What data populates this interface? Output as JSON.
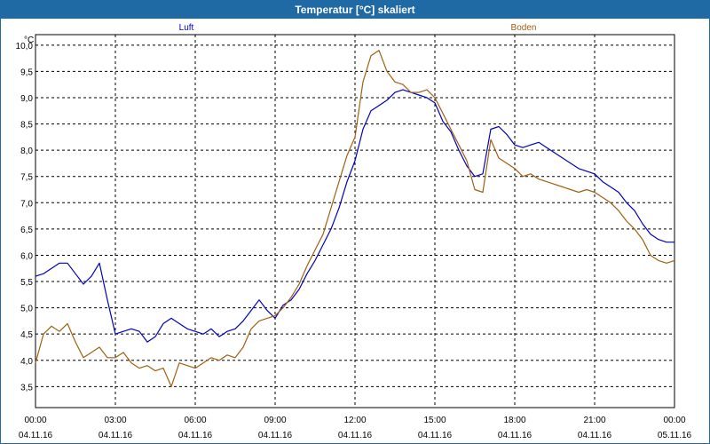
{
  "window": {
    "title": "Temperatur [°C] skaliert"
  },
  "chart_data": {
    "type": "line",
    "title": "Temperatur [°C] skaliert",
    "ylabel": "°C",
    "ylim": [
      3.1,
      10.2
    ],
    "yticks": [
      "10,0",
      "9,5",
      "9,0",
      "8,5",
      "8,0",
      "7,5",
      "7,0",
      "6,5",
      "6,0",
      "5,5",
      "5,0",
      "4,5",
      "4,0",
      "3,5"
    ],
    "xlim": [
      0,
      24
    ],
    "xticks": [
      {
        "time": "00:00",
        "date": "04.11.16"
      },
      {
        "time": "03:00",
        "date": "04.11.16"
      },
      {
        "time": "06:00",
        "date": "04.11.16"
      },
      {
        "time": "09:00",
        "date": "04.11.16"
      },
      {
        "time": "12:00",
        "date": "04.11.16"
      },
      {
        "time": "15:00",
        "date": "04.11.16"
      },
      {
        "time": "18:00",
        "date": "04.11.16"
      },
      {
        "time": "21:00",
        "date": "04.11.16"
      },
      {
        "time": "00:00",
        "date": "05.11.16"
      }
    ],
    "grid": true,
    "series": [
      {
        "name": "Luft",
        "color": "#0000c0",
        "x": [
          0,
          0.3,
          0.6,
          0.9,
          1.2,
          1.5,
          1.8,
          2.1,
          2.4,
          2.7,
          3.0,
          3.3,
          3.6,
          3.9,
          4.2,
          4.5,
          4.8,
          5.1,
          5.4,
          5.7,
          6.0,
          6.3,
          6.6,
          6.9,
          7.2,
          7.5,
          7.8,
          8.1,
          8.4,
          8.7,
          9.0,
          9.3,
          9.6,
          9.9,
          10.2,
          10.5,
          10.8,
          11.1,
          11.4,
          11.7,
          12.0,
          12.3,
          12.6,
          12.9,
          13.2,
          13.5,
          13.8,
          14.1,
          14.4,
          14.7,
          15.0,
          15.3,
          15.6,
          15.9,
          16.2,
          16.5,
          16.8,
          17.1,
          17.4,
          17.7,
          18.0,
          18.3,
          18.6,
          18.9,
          19.2,
          19.5,
          19.8,
          20.1,
          20.4,
          20.7,
          21.0,
          21.3,
          21.6,
          21.9,
          22.2,
          22.5,
          22.8,
          23.1,
          23.4,
          23.7,
          24.0
        ],
        "values": [
          5.6,
          5.65,
          5.75,
          5.85,
          5.85,
          5.65,
          5.45,
          5.6,
          5.85,
          5.15,
          4.5,
          4.55,
          4.6,
          4.55,
          4.35,
          4.45,
          4.7,
          4.8,
          4.7,
          4.6,
          4.55,
          4.5,
          4.6,
          4.45,
          4.55,
          4.6,
          4.75,
          4.95,
          5.15,
          4.95,
          4.8,
          5.05,
          5.15,
          5.35,
          5.65,
          5.9,
          6.2,
          6.5,
          6.9,
          7.4,
          7.8,
          8.4,
          8.75,
          8.85,
          8.95,
          9.1,
          9.15,
          9.1,
          9.05,
          9.0,
          8.9,
          8.55,
          8.35,
          8.0,
          7.7,
          7.5,
          7.55,
          8.4,
          8.45,
          8.3,
          8.1,
          8.05,
          8.1,
          8.15,
          8.05,
          7.95,
          7.85,
          7.75,
          7.65,
          7.6,
          7.55,
          7.4,
          7.3,
          7.2,
          7.0,
          6.85,
          6.6,
          6.4,
          6.3,
          6.25,
          6.25
        ]
      },
      {
        "name": "Boden",
        "color": "#a06010",
        "x": [
          0,
          0.3,
          0.6,
          0.9,
          1.2,
          1.5,
          1.8,
          2.1,
          2.4,
          2.7,
          3.0,
          3.3,
          3.6,
          3.9,
          4.2,
          4.5,
          4.8,
          5.1,
          5.4,
          5.7,
          6.0,
          6.3,
          6.6,
          6.9,
          7.2,
          7.5,
          7.8,
          8.1,
          8.4,
          8.7,
          9.0,
          9.3,
          9.6,
          9.9,
          10.2,
          10.5,
          10.8,
          11.1,
          11.4,
          11.7,
          12.0,
          12.3,
          12.6,
          12.9,
          13.2,
          13.5,
          13.8,
          14.1,
          14.4,
          14.7,
          15.0,
          15.3,
          15.6,
          15.9,
          16.2,
          16.5,
          16.8,
          17.1,
          17.4,
          17.7,
          18.0,
          18.3,
          18.6,
          18.9,
          19.2,
          19.5,
          19.8,
          20.1,
          20.4,
          20.7,
          21.0,
          21.3,
          21.6,
          21.9,
          22.2,
          22.5,
          22.8,
          23.1,
          23.4,
          23.7,
          24.0
        ],
        "values": [
          3.95,
          4.5,
          4.65,
          4.55,
          4.7,
          4.35,
          4.05,
          4.15,
          4.25,
          4.05,
          4.05,
          4.15,
          3.95,
          3.85,
          3.9,
          3.8,
          3.85,
          3.5,
          3.95,
          3.9,
          3.85,
          3.95,
          4.05,
          4.0,
          4.1,
          4.05,
          4.25,
          4.6,
          4.75,
          4.8,
          4.85,
          5.0,
          5.2,
          5.45,
          5.8,
          6.1,
          6.4,
          6.9,
          7.4,
          7.9,
          8.25,
          9.3,
          9.8,
          9.9,
          9.5,
          9.3,
          9.25,
          9.1,
          9.1,
          9.15,
          9.0,
          8.7,
          8.4,
          8.1,
          7.8,
          7.25,
          7.2,
          8.2,
          7.85,
          7.75,
          7.65,
          7.5,
          7.55,
          7.45,
          7.4,
          7.35,
          7.3,
          7.25,
          7.2,
          7.25,
          7.2,
          7.1,
          7.0,
          6.85,
          6.65,
          6.5,
          6.3,
          6.0,
          5.9,
          5.85,
          5.9
        ]
      }
    ]
  }
}
